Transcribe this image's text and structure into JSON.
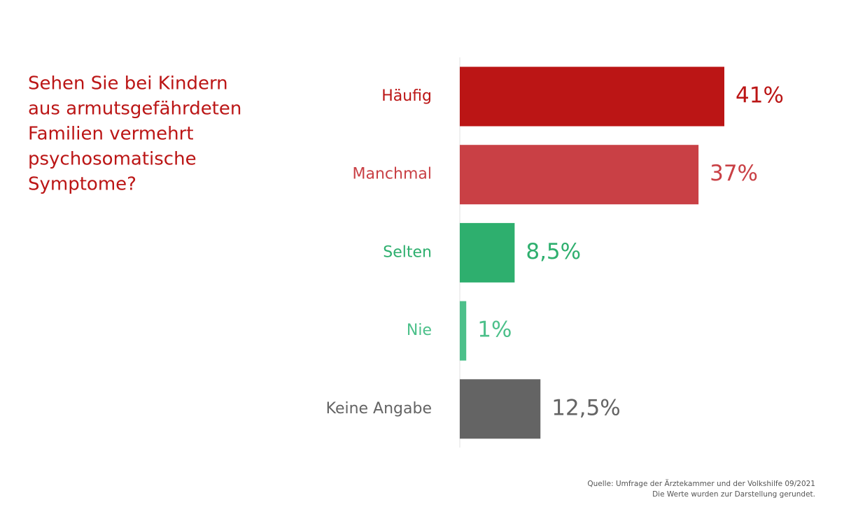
{
  "chart_data": {
    "type": "hbar",
    "title": [
      "Sehen Sie bei Kindern",
      "aus armutsgefährdeten",
      "Familien vermehrt",
      "psychosomatische",
      "Symptome?"
    ],
    "categories": [
      "Häufig",
      "Manchmal",
      "Selten",
      "Nie",
      "Keine Angabe"
    ],
    "values": [
      41,
      37,
      8.5,
      1,
      12.5
    ],
    "value_labels": [
      "41%",
      "37%",
      "8,5%",
      "1%",
      "12,5%"
    ],
    "colors": [
      "#bb1515",
      "#c94045",
      "#2eaf6e",
      "#4cc08a",
      "#646464"
    ],
    "notes": [
      "Quelle: Umfrage der Ärztekammer und der Volkshilfe 09/2021",
      "Die Werte wurden zur Darstellung gerundet."
    ]
  }
}
